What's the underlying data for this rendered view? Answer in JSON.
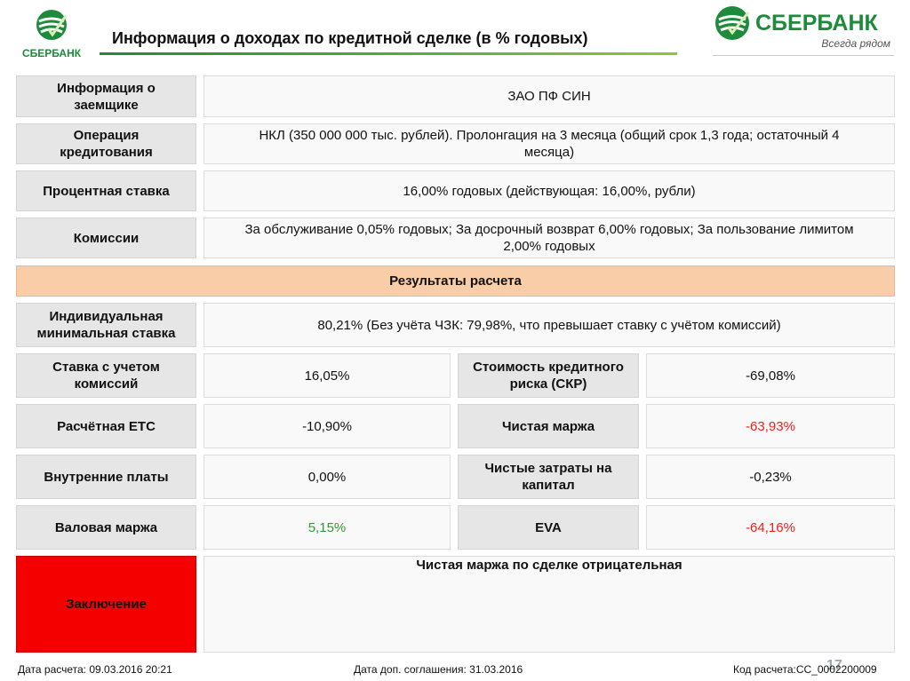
{
  "header": {
    "title": "Информация о доходах по кредитной сделке (в % годовых)",
    "logo_left_text": "СБЕРБАНК",
    "logo_right_text": "СБЕРБАНК",
    "logo_right_tagline": "Всегда рядом"
  },
  "borrower": {
    "label": "Информация о заемщике",
    "value": "ЗАО ПФ СИН"
  },
  "operation": {
    "label": "Операция кредитования",
    "value": "НКЛ  (350 000 000 тыс. рублей). Пролонгация на 3 месяца (общий срок 1,3 года; остаточный 4 месяца)"
  },
  "rate": {
    "label": "Процентная ставка",
    "value": "16,00% годовых (действующая: 16,00%, рубли)"
  },
  "fees": {
    "label": "Комиссии",
    "value": "За обслуживание 0,05% годовых; За досрочный возврат 6,00% годовых; За пользование лимитом 2,00% годовых"
  },
  "results": {
    "banner": "Результаты расчета"
  },
  "min_rate": {
    "label": "Индивидуальная минимальная ставка",
    "value": "80,21%  (Без учёта ЧЗК: 79,98%, что превышает ставку с учётом комиссий)"
  },
  "grid": [
    {
      "left_label": "Ставка с учетом комиссий",
      "left_value": "16,05%",
      "right_label": "Стоимость кредитного риска (СКР)",
      "right_value": "-69,08%"
    },
    {
      "left_label": "Расчётная ЕТС",
      "left_value": "-10,90%",
      "right_label": "Чистая маржа",
      "right_value": "-63,93%"
    },
    {
      "left_label": "Внутренние платы",
      "left_value": "0,00%",
      "right_label": "Чистые затраты на капитал",
      "right_value": "-0,23%"
    },
    {
      "left_label": "Валовая маржа",
      "left_value": "5,15%",
      "right_label": "EVA",
      "right_value": "-64,16%"
    }
  ],
  "conclusion": {
    "label": "Заключение",
    "text": "Чистая маржа по сделке отрицательная"
  },
  "footer": {
    "calc_date": "Дата расчета: 09.03.2016 20:21",
    "agreement_date": "Дата доп. соглашения:   31.03.2016",
    "calc_code": "Код расчета:СС_0002200009",
    "page_number": "17"
  },
  "colors": {
    "positive": "#2e9a38",
    "negative": "#e8221c",
    "brand_green": "#1e8a3c",
    "banner": "#f9cda8",
    "conclusion": "#f40000"
  }
}
